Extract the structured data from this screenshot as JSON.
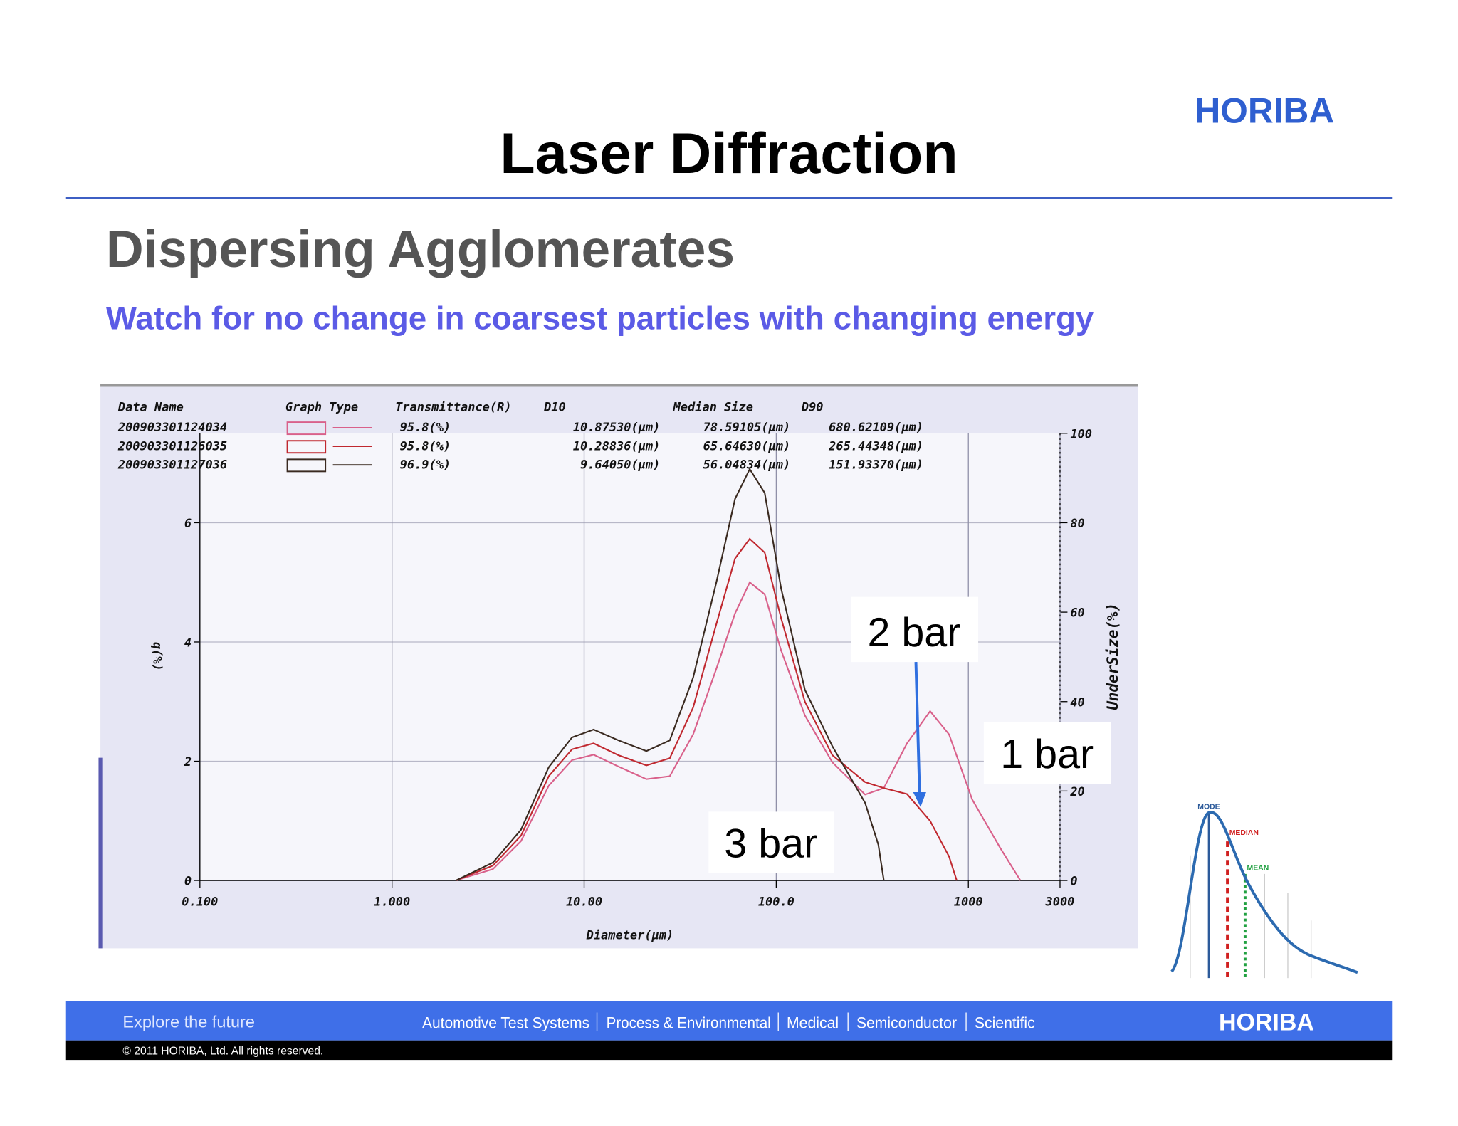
{
  "header": {
    "title": "Laser Diffraction",
    "logo": "HORIBA",
    "heading": "Dispersing Agglomerates",
    "subheading": "Watch for no change in coarsest particles with changing energy"
  },
  "chart_data": {
    "type": "line",
    "x_label": "Diameter(μm)",
    "y_label": "q(%)",
    "y2_label": "UnderSize(%)",
    "xscale": "log",
    "xlim": [
      0.1,
      3000
    ],
    "xticks": [
      {
        "value": 0.1,
        "label": "0.100"
      },
      {
        "value": 1,
        "label": "1.000"
      },
      {
        "value": 10,
        "label": "10.00"
      },
      {
        "value": 100,
        "label": "100.0"
      },
      1000,
      3000
    ],
    "ylim": [
      0,
      7.5
    ],
    "yticks": [
      0,
      2,
      4,
      6
    ],
    "y2lim": [
      0,
      100
    ],
    "y2ticks": [
      0,
      20,
      40,
      60,
      80,
      100
    ],
    "grid": true,
    "legend_columns": [
      "Data Name",
      "Graph Type",
      "Transmittance(R)",
      "D10",
      "Median Size",
      "D90"
    ],
    "series": [
      {
        "name": "200903301124034",
        "color": "#d9608a",
        "transmittance": "95.8(%)",
        "d10": "10.87530(μm)",
        "median": "78.59105(μm)",
        "d90": "680.62109(μm)",
        "x": [
          2.15,
          3.35,
          4.69,
          6.55,
          8.65,
          11.2,
          15.1,
          21.1,
          27.9,
          36.9,
          48.8,
          61,
          72.8,
          87.1,
          106,
          141,
          196,
          290,
          363,
          479,
          632,
          794,
          1047,
          1462,
          1866
        ],
        "values": [
          0,
          0.19,
          0.66,
          1.59,
          2.02,
          2.11,
          1.91,
          1.7,
          1.75,
          2.45,
          3.55,
          4.48,
          5.0,
          4.8,
          3.86,
          2.77,
          1.98,
          1.44,
          1.55,
          2.3,
          2.84,
          2.45,
          1.36,
          0.55,
          0
        ]
      },
      {
        "name": "200903301126035",
        "color": "#c0282f",
        "transmittance": "95.8(%)",
        "d10": "10.28836(μm)",
        "median": "65.64630(μm)",
        "d90": "265.44348(μm)",
        "x": [
          2.15,
          3.35,
          4.69,
          6.55,
          8.65,
          11.2,
          15.1,
          21.1,
          27.9,
          36.9,
          48.8,
          61,
          72.8,
          87.1,
          106,
          141,
          196,
          290,
          363,
          479,
          632,
          794,
          870
        ],
        "values": [
          0,
          0.25,
          0.75,
          1.75,
          2.2,
          2.3,
          2.1,
          1.93,
          2.05,
          2.9,
          4.3,
          5.4,
          5.73,
          5.5,
          4.4,
          3.0,
          2.1,
          1.65,
          1.55,
          1.45,
          1.0,
          0.4,
          0
        ]
      },
      {
        "name": "200903301127036",
        "color": "#3a2a20",
        "transmittance": "96.9(%)",
        "d10": "9.64050(μm)",
        "median": "56.04834(μm)",
        "d90": "151.93370(μm)",
        "x": [
          2.15,
          3.35,
          4.69,
          6.55,
          8.65,
          11.2,
          15.1,
          21.1,
          27.9,
          36.9,
          48.8,
          61,
          72.8,
          87.1,
          106,
          141,
          196,
          290,
          340,
          363
        ],
        "values": [
          0,
          0.3,
          0.85,
          1.9,
          2.4,
          2.53,
          2.35,
          2.17,
          2.35,
          3.4,
          5.0,
          6.4,
          6.9,
          6.5,
          4.9,
          3.2,
          2.25,
          1.3,
          0.6,
          0
        ]
      }
    ],
    "annotations": [
      "2 bar",
      "1 bar",
      "3 bar"
    ]
  },
  "inset": {
    "labels": [
      "MODE",
      "MEDIAN",
      "MEAN"
    ]
  },
  "footer": {
    "tagline": "Explore the future",
    "divisions": [
      "Automotive Test Systems",
      "Process & Environmental",
      "Medical",
      "Semiconductor",
      "Scientific"
    ],
    "logo": "HORIBA",
    "copyright": "© 2011 HORIBA, Ltd. All rights reserved."
  }
}
